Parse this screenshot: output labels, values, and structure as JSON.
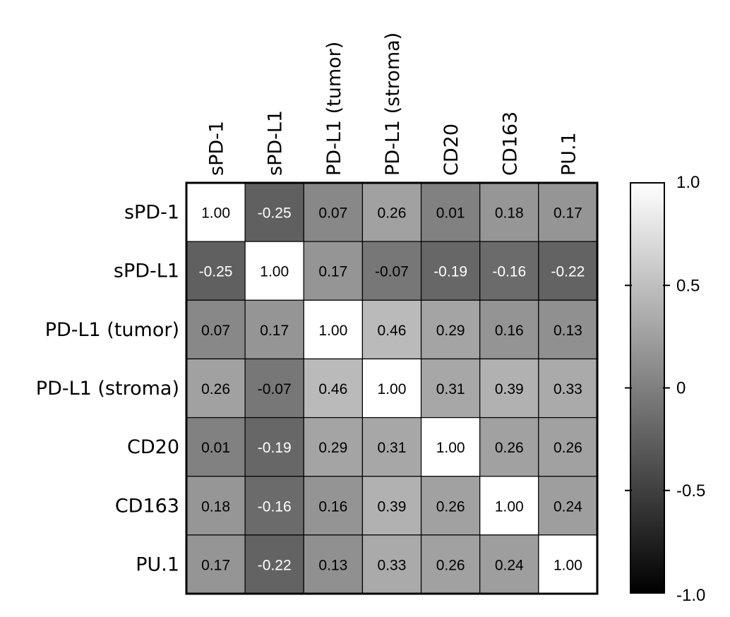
{
  "chart_data": {
    "type": "heatmap",
    "title": "",
    "row_labels": [
      "sPD-1",
      "sPD-L1",
      "PD-L1 (tumor)",
      "PD-L1 (stroma)",
      "CD20",
      "CD163",
      "PU.1"
    ],
    "column_labels": [
      "sPD-1",
      "sPD-L1",
      "PD-L1 (tumor)",
      "PD-L1 (stroma)",
      "CD20",
      "CD163",
      "PU.1"
    ],
    "values": [
      [
        "1.00",
        "-0.25",
        "0.07",
        "0.26",
        "0.01",
        "0.18",
        "0.17"
      ],
      [
        "-0.25",
        "1.00",
        "0.17",
        "-0.07",
        "-0.19",
        "-0.16",
        "-0.22"
      ],
      [
        "0.07",
        "0.17",
        "1.00",
        "0.46",
        "0.29",
        "0.16",
        "0.13"
      ],
      [
        "0.26",
        "-0.07",
        "0.46",
        "1.00",
        "0.31",
        "0.39",
        "0.33"
      ],
      [
        "0.01",
        "-0.19",
        "0.29",
        "0.31",
        "1.00",
        "0.26",
        "0.26"
      ],
      [
        "0.18",
        "-0.16",
        "0.16",
        "0.39",
        "0.26",
        "1.00",
        "0.24"
      ],
      [
        "0.17",
        "-0.22",
        "0.13",
        "0.33",
        "0.26",
        "0.24",
        "1.00"
      ]
    ],
    "colorbar": {
      "range": [
        -1.0,
        1.0
      ],
      "ticks": [
        1.0,
        0.5,
        0,
        -0.5,
        -1.0
      ],
      "tick_labels": [
        "1.0",
        "0.5",
        "0",
        "-0.5",
        "-1.0"
      ],
      "colors": [
        "#000000",
        "#ffffff"
      ]
    },
    "legend_position": "right"
  }
}
